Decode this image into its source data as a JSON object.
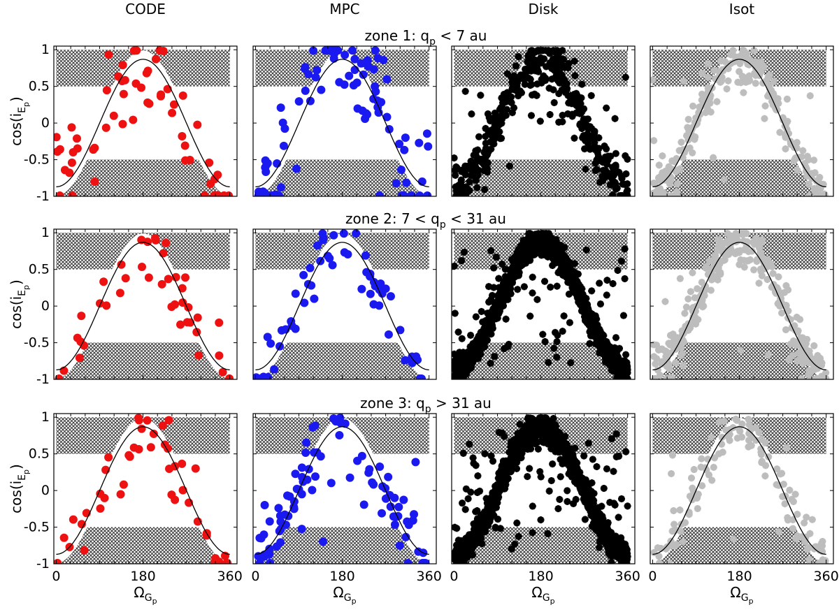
{
  "columns": [
    {
      "title": "CODE",
      "marker": "dot",
      "color": "#ee1111"
    },
    {
      "title": "MPC",
      "marker": "dot",
      "color": "#1a1af0"
    },
    {
      "title": "Disk",
      "marker": "cross",
      "color": "#000000"
    },
    {
      "title": "Isot",
      "marker": "cross",
      "color": "#bdbdbd"
    }
  ],
  "zones": [
    {
      "label": "zone 1: q",
      "sub": "p",
      "rest": " < 7 au",
      "density": [
        60,
        90,
        420,
        260
      ]
    },
    {
      "label": "zone 2: 7 < q",
      "sub": "p",
      "rest": " < 31 au",
      "density": [
        40,
        60,
        1500,
        320
      ]
    },
    {
      "label": "zone 3: q",
      "sub": "p",
      "rest": " > 31 au",
      "density": [
        45,
        90,
        1700,
        140
      ]
    }
  ],
  "axes": {
    "ylabel": {
      "main": "cos(i",
      "sub": "E",
      "subsub": "p",
      "close": ")"
    },
    "xlabel": {
      "main": "Ω",
      "sub": "G",
      "subsub": "p"
    },
    "xticks": [
      0,
      180,
      360
    ],
    "yticks": [
      1,
      0.5,
      0,
      -0.5,
      -1
    ],
    "ytick_labels": [
      "1",
      "0.5",
      "0",
      "-0.5",
      "-1"
    ],
    "xlim": [
      -5,
      375
    ],
    "ylim": [
      -1,
      1.05
    ]
  },
  "chart_data": {
    "type": "scatter",
    "layout": "3x4 grid",
    "x_variable": "Ω_Gp (deg)",
    "y_variable": "cos(i_Ep)",
    "reference_curve": {
      "formula": "y = -0.87 * cos(x)",
      "amplitude": 0.87,
      "x_range": [
        0,
        360
      ]
    },
    "shaded_regions": [
      {
        "name": "upper",
        "y_range": [
          0.5,
          1.0
        ],
        "follows_curve_above": true
      },
      {
        "name": "lower",
        "y_range": [
          -1.0,
          -0.5
        ],
        "follows_curve_below": true
      }
    ],
    "grid": false,
    "legend": "none"
  }
}
